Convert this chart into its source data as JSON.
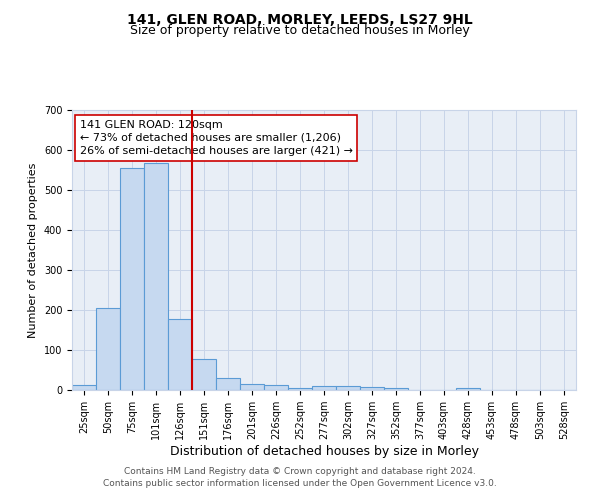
{
  "title": "141, GLEN ROAD, MORLEY, LEEDS, LS27 9HL",
  "subtitle": "Size of property relative to detached houses in Morley",
  "xlabel": "Distribution of detached houses by size in Morley",
  "ylabel": "Number of detached properties",
  "categories": [
    "25sqm",
    "50sqm",
    "75sqm",
    "101sqm",
    "126sqm",
    "151sqm",
    "176sqm",
    "201sqm",
    "226sqm",
    "252sqm",
    "277sqm",
    "302sqm",
    "327sqm",
    "352sqm",
    "377sqm",
    "403sqm",
    "428sqm",
    "453sqm",
    "478sqm",
    "503sqm",
    "528sqm"
  ],
  "values": [
    12,
    205,
    555,
    568,
    178,
    78,
    30,
    14,
    13,
    5,
    10,
    10,
    8,
    5,
    0,
    0,
    5,
    0,
    0,
    0,
    0
  ],
  "bar_color": "#c6d9f0",
  "bar_edge_color": "#5b9bd5",
  "vline_color": "#cc0000",
  "vline_x_index": 4,
  "annotation_text": "141 GLEN ROAD: 120sqm\n← 73% of detached houses are smaller (1,206)\n26% of semi-detached houses are larger (421) →",
  "annotation_box_color": "white",
  "annotation_box_edge": "#cc0000",
  "ylim": [
    0,
    700
  ],
  "yticks": [
    0,
    100,
    200,
    300,
    400,
    500,
    600,
    700
  ],
  "grid_color": "#c8d4e8",
  "bg_color": "#e8eef6",
  "footnote": "Contains HM Land Registry data © Crown copyright and database right 2024.\nContains public sector information licensed under the Open Government Licence v3.0.",
  "title_fontsize": 10,
  "subtitle_fontsize": 9,
  "xlabel_fontsize": 9,
  "ylabel_fontsize": 8,
  "tick_fontsize": 7,
  "annot_fontsize": 8,
  "footnote_fontsize": 6.5
}
